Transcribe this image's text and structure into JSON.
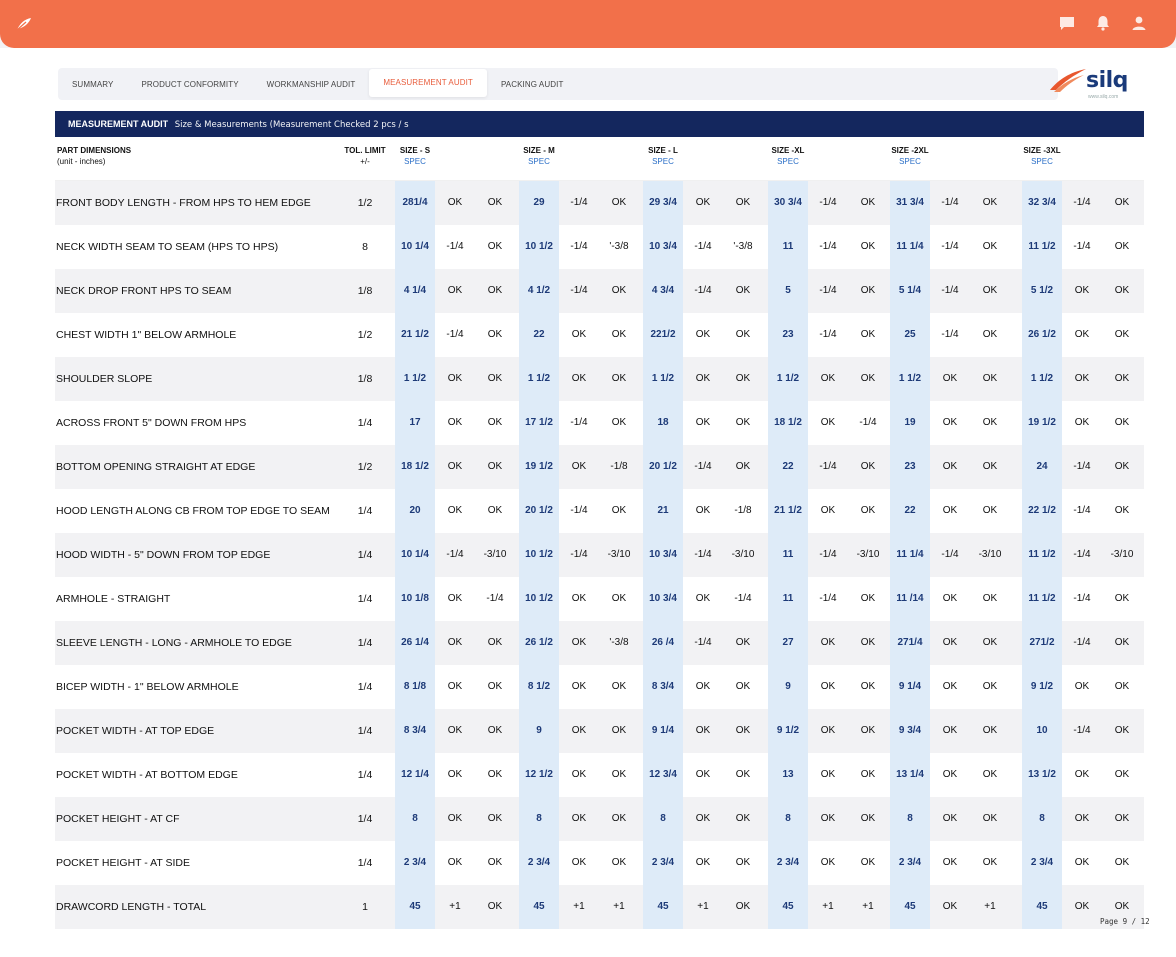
{
  "header": {
    "icons": [
      "leaf-logo-icon",
      "chat-icon",
      "bell-icon",
      "user-icon"
    ]
  },
  "tabs": [
    {
      "label": "SUMMARY",
      "active": false
    },
    {
      "label": "PRODUCT CONFORMITY",
      "active": false
    },
    {
      "label": "WORKMANSHIP AUDIT",
      "active": false
    },
    {
      "label": "MEASUREMENT AUDIT",
      "active": true
    },
    {
      "label": "PACKING AUDIT",
      "active": false
    }
  ],
  "brand": {
    "name": "silq",
    "url": "www.silq.com"
  },
  "banner": {
    "title": "MEASUREMENT AUDIT",
    "subtitle": "Size & Measurements  (Measurement Checked 2 pcs / s"
  },
  "table": {
    "part_label": "PART DIMENSIONS",
    "part_unit": "(unit - inches)",
    "tol_label": "TOL. LIMIT",
    "tol_unit": "+/-",
    "spec_label": "SPEC",
    "sizes": [
      "SIZE - S",
      "SIZE - M",
      "SIZE - L",
      "SIZE -XL",
      "SIZE -2XL",
      "SIZE -3XL"
    ],
    "rows": [
      {
        "name": "FRONT BODY LENGTH - FROM HPS TO HEM EDGE",
        "tol": "1/2",
        "cells": [
          [
            "281/4",
            "OK",
            "OK"
          ],
          [
            "29",
            "-1/4",
            "OK"
          ],
          [
            "29 3/4",
            "OK",
            "OK"
          ],
          [
            "30 3/4",
            "-1/4",
            "OK"
          ],
          [
            "31 3/4",
            "-1/4",
            "OK"
          ],
          [
            "32 3/4",
            "-1/4",
            "OK"
          ]
        ]
      },
      {
        "name": "NECK WIDTH SEAM TO SEAM (HPS TO HPS)",
        "tol": "8",
        "cells": [
          [
            "10 1/4",
            "-1/4",
            "OK"
          ],
          [
            "10 1/2",
            "-1/4",
            "'-3/8"
          ],
          [
            "10 3/4",
            "-1/4",
            "'-3/8"
          ],
          [
            "11",
            "-1/4",
            "OK"
          ],
          [
            "11 1/4",
            "-1/4",
            "OK"
          ],
          [
            "11 1/2",
            "-1/4",
            "OK"
          ]
        ]
      },
      {
        "name": "NECK DROP FRONT HPS TO SEAM",
        "tol": "1/8",
        "cells": [
          [
            "4 1/4",
            "OK",
            "OK"
          ],
          [
            "4 1/2",
            "-1/4",
            "OK"
          ],
          [
            "4 3/4",
            "-1/4",
            "OK"
          ],
          [
            "5",
            "-1/4",
            "OK"
          ],
          [
            "5 1/4",
            "-1/4",
            "OK"
          ],
          [
            "5 1/2",
            "OK",
            "OK"
          ]
        ]
      },
      {
        "name": "CHEST WIDTH 1\" BELOW ARMHOLE",
        "tol": "1/2",
        "cells": [
          [
            "21 1/2",
            "-1/4",
            "OK"
          ],
          [
            "22",
            "OK",
            "OK"
          ],
          [
            "221/2",
            "OK",
            "OK"
          ],
          [
            "23",
            "-1/4",
            "OK"
          ],
          [
            "25",
            "-1/4",
            "OK"
          ],
          [
            "26 1/2",
            "OK",
            "OK"
          ]
        ]
      },
      {
        "name": "SHOULDER SLOPE",
        "tol": "1/8",
        "cells": [
          [
            "1 1/2",
            "OK",
            "OK"
          ],
          [
            "1 1/2",
            "OK",
            "OK"
          ],
          [
            "1 1/2",
            "OK",
            "OK"
          ],
          [
            "1 1/2",
            "OK",
            "OK"
          ],
          [
            "1 1/2",
            "OK",
            "OK"
          ],
          [
            "1 1/2",
            "OK",
            "OK"
          ]
        ]
      },
      {
        "name": "ACROSS FRONT 5\" DOWN FROM HPS",
        "tol": "1/4",
        "cells": [
          [
            "17",
            "OK",
            "OK"
          ],
          [
            "17 1/2",
            "-1/4",
            "OK"
          ],
          [
            "18",
            "OK",
            "OK"
          ],
          [
            "18 1/2",
            "OK",
            "-1/4"
          ],
          [
            "19",
            "OK",
            "OK"
          ],
          [
            "19 1/2",
            "OK",
            "OK"
          ]
        ]
      },
      {
        "name": " BOTTOM OPENING STRAIGHT AT EDGE",
        "tol": "1/2",
        "cells": [
          [
            "18 1/2",
            "OK",
            "OK"
          ],
          [
            "19 1/2",
            "OK",
            "-1/8"
          ],
          [
            "20 1/2",
            "-1/4",
            "OK"
          ],
          [
            "22",
            "-1/4",
            "OK"
          ],
          [
            "23",
            "OK",
            "OK"
          ],
          [
            "24",
            "-1/4",
            "OK"
          ]
        ]
      },
      {
        "name": "HOOD LENGTH ALONG CB FROM TOP EDGE TO SEAM",
        "tol": "1/4",
        "cells": [
          [
            "20",
            "OK",
            "OK"
          ],
          [
            "20 1/2",
            "-1/4",
            "OK"
          ],
          [
            "21",
            "OK",
            "-1/8"
          ],
          [
            "21 1/2",
            "OK",
            "OK"
          ],
          [
            "22",
            "OK",
            "OK"
          ],
          [
            "22 1/2",
            "-1/4",
            "OK"
          ]
        ]
      },
      {
        "name": " HOOD WIDTH - 5\" DOWN FROM TOP EDGE",
        "tol": "1/4",
        "cells": [
          [
            "10 1/4",
            "-1/4",
            "-3/10"
          ],
          [
            "10 1/2",
            "-1/4",
            "-3/10"
          ],
          [
            "10 3/4",
            "-1/4",
            "-3/10"
          ],
          [
            "11",
            "-1/4",
            "-3/10"
          ],
          [
            "11 1/4",
            "-1/4",
            "-3/10"
          ],
          [
            "11 1/2",
            "-1/4",
            "-3/10"
          ]
        ]
      },
      {
        "name": " ARMHOLE - STRAIGHT",
        "tol": "1/4",
        "cells": [
          [
            "10 1/8",
            "OK",
            "-1/4"
          ],
          [
            "10 1/2",
            "OK",
            "OK"
          ],
          [
            "10 3/4",
            "OK",
            "-1/4"
          ],
          [
            "11",
            "-1/4",
            "OK"
          ],
          [
            "11 /14",
            "OK",
            "OK"
          ],
          [
            "11 1/2",
            "-1/4",
            "OK"
          ]
        ]
      },
      {
        "name": "SLEEVE LENGTH - LONG - ARMHOLE TO EDGE",
        "tol": "1/4",
        "cells": [
          [
            "26 1/4",
            "OK",
            "OK"
          ],
          [
            "26 1/2",
            "OK",
            "'-3/8"
          ],
          [
            "26 /4",
            "-1/4",
            "OK"
          ],
          [
            "27",
            "OK",
            "OK"
          ],
          [
            "271/4",
            "OK",
            "OK"
          ],
          [
            "271/2",
            "-1/4",
            "OK"
          ]
        ]
      },
      {
        "name": "BICEP WIDTH - 1\" BELOW ARMHOLE",
        "tol": "1/4",
        "cells": [
          [
            "8 1/8",
            "OK",
            "OK"
          ],
          [
            "8 1/2",
            "OK",
            "OK"
          ],
          [
            "8 3/4",
            "OK",
            "OK"
          ],
          [
            "9",
            "OK",
            "OK"
          ],
          [
            "9 1/4",
            "OK",
            "OK"
          ],
          [
            "9 1/2",
            "OK",
            "OK"
          ]
        ]
      },
      {
        "name": " POCKET WIDTH - AT TOP EDGE",
        "tol": "1/4",
        "cells": [
          [
            "8 3/4",
            "OK",
            "OK"
          ],
          [
            "9",
            "OK",
            "OK"
          ],
          [
            "9 1/4",
            "OK",
            "OK"
          ],
          [
            "9 1/2",
            "OK",
            "OK"
          ],
          [
            "9 3/4",
            "OK",
            "OK"
          ],
          [
            "10",
            "-1/4",
            "OK"
          ]
        ]
      },
      {
        "name": " POCKET WIDTH - AT BOTTOM EDGE",
        "tol": "1/4",
        "cells": [
          [
            "12 1/4",
            "OK",
            "OK"
          ],
          [
            "12 1/2",
            "OK",
            "OK"
          ],
          [
            "12  3/4",
            "OK",
            "OK"
          ],
          [
            "13",
            "OK",
            "OK"
          ],
          [
            "13 1/4",
            "OK",
            "OK"
          ],
          [
            "13 1/2",
            "OK",
            "OK"
          ]
        ]
      },
      {
        "name": " POCKET HEIGHT - AT CF",
        "tol": "1/4",
        "cells": [
          [
            "8",
            "OK",
            "OK"
          ],
          [
            "8",
            "OK",
            "OK"
          ],
          [
            "8",
            "OK",
            "OK"
          ],
          [
            "8",
            "OK",
            "OK"
          ],
          [
            "8",
            "OK",
            "OK"
          ],
          [
            "8",
            "OK",
            "OK"
          ]
        ]
      },
      {
        "name": " POCKET HEIGHT - AT SIDE",
        "tol": "1/4",
        "cells": [
          [
            "2 3/4",
            "OK",
            "OK"
          ],
          [
            "2 3/4",
            "OK",
            "OK"
          ],
          [
            "2 3/4",
            "OK",
            "OK"
          ],
          [
            "2 3/4",
            "OK",
            "OK"
          ],
          [
            "2 3/4",
            "OK",
            "OK"
          ],
          [
            "2 3/4",
            "OK",
            "OK"
          ]
        ]
      },
      {
        "name": "DRAWCORD LENGTH - TOTAL",
        "tol": "1",
        "cells": [
          [
            "45",
            "+1",
            "OK"
          ],
          [
            "45",
            "+1",
            "+1"
          ],
          [
            "45",
            "+1",
            "OK"
          ],
          [
            "45",
            "+1",
            "+1"
          ],
          [
            "45",
            "OK",
            "+1"
          ],
          [
            "45",
            "OK",
            "OK"
          ]
        ]
      }
    ]
  },
  "pager": "Page 9 / 12"
}
